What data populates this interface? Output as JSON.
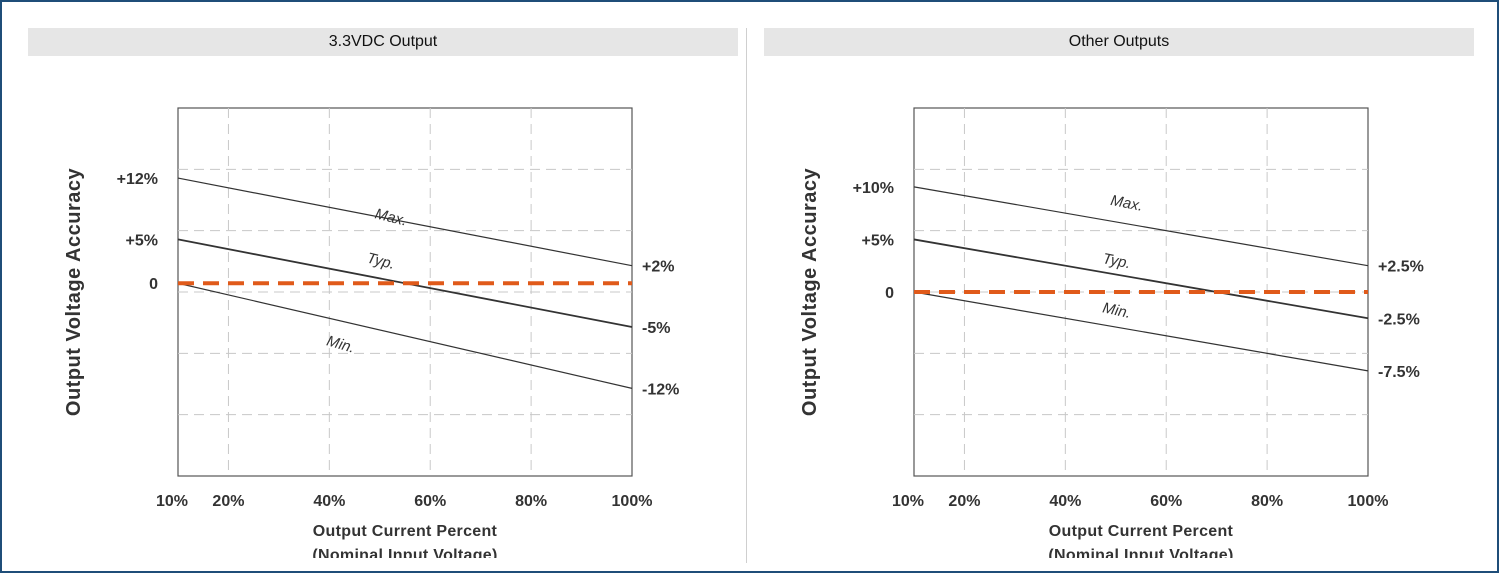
{
  "panels": [
    {
      "title": "3.3VDC Output",
      "chart_data": {
        "type": "line",
        "ylabel": "Output Voltage Accuracy",
        "xlabel": "Output Current Percent",
        "xlabel_sub": "(Nominal Input Voltage)",
        "x_ticks": [
          "10%",
          "20%",
          "40%",
          "60%",
          "80%",
          "100%"
        ],
        "x_tick_values": [
          10,
          20,
          40,
          60,
          80,
          100
        ],
        "xlim": [
          10,
          100
        ],
        "ylim": [
          -22,
          20
        ],
        "y_left_labels": [
          {
            "value": 12,
            "text": "+12%"
          },
          {
            "value": 5,
            "text": "+5%"
          },
          {
            "value": 0,
            "text": "0"
          }
        ],
        "y_right_labels": [
          {
            "value": 2,
            "text": "+2%"
          },
          {
            "value": -5,
            "text": "-5%"
          },
          {
            "value": -12,
            "text": "-12%"
          }
        ],
        "series": [
          {
            "name": "Max.",
            "x": [
              10,
              100
            ],
            "y": [
              12,
              2
            ],
            "label_at": [
              52,
              7.0
            ],
            "label_rot": 14
          },
          {
            "name": "Typ.",
            "x": [
              10,
              100
            ],
            "y": [
              5,
              -5
            ],
            "label_at": [
              50,
              2.0
            ],
            "label_rot": 14
          },
          {
            "name": "Min.",
            "x": [
              10,
              100
            ],
            "y": [
              0,
              -12
            ],
            "label_at": [
              42,
              -7.5
            ],
            "label_rot": 16
          }
        ],
        "reference_line": {
          "y": 0,
          "color": "#e05a1a",
          "style": "dashed"
        },
        "grid": true
      }
    },
    {
      "title": "Other Outputs",
      "chart_data": {
        "type": "line",
        "ylabel": "Output Voltage Accuracy",
        "xlabel": "Output Current Percent",
        "xlabel_sub": "(Nominal Input Voltage)",
        "x_ticks": [
          "10%",
          "20%",
          "40%",
          "60%",
          "80%",
          "100%"
        ],
        "x_tick_values": [
          10,
          20,
          40,
          60,
          80,
          100
        ],
        "xlim": [
          10,
          100
        ],
        "ylim": [
          -17.5,
          17.5
        ],
        "y_left_labels": [
          {
            "value": 10,
            "text": "+10%"
          },
          {
            "value": 5,
            "text": "+5%"
          },
          {
            "value": 0,
            "text": "0"
          }
        ],
        "y_right_labels": [
          {
            "value": 2.5,
            "text": "+2.5%"
          },
          {
            "value": -2.5,
            "text": "-2.5%"
          },
          {
            "value": -7.5,
            "text": "-7.5%"
          }
        ],
        "series": [
          {
            "name": "Max.",
            "x": [
              10,
              100
            ],
            "y": [
              10,
              2.5
            ],
            "label_at": [
              52,
              8.0
            ],
            "label_rot": 11
          },
          {
            "name": "Typ.",
            "x": [
              10,
              100
            ],
            "y": [
              5,
              -2.5
            ],
            "label_at": [
              50,
              2.5
            ],
            "label_rot": 11
          },
          {
            "name": "Min.",
            "x": [
              10,
              100
            ],
            "y": [
              0,
              -7.5
            ],
            "label_at": [
              50,
              -2.2
            ],
            "label_rot": 12
          }
        ],
        "reference_line": {
          "y": 0,
          "color": "#e05a1a",
          "style": "dashed"
        },
        "grid": true
      }
    }
  ]
}
